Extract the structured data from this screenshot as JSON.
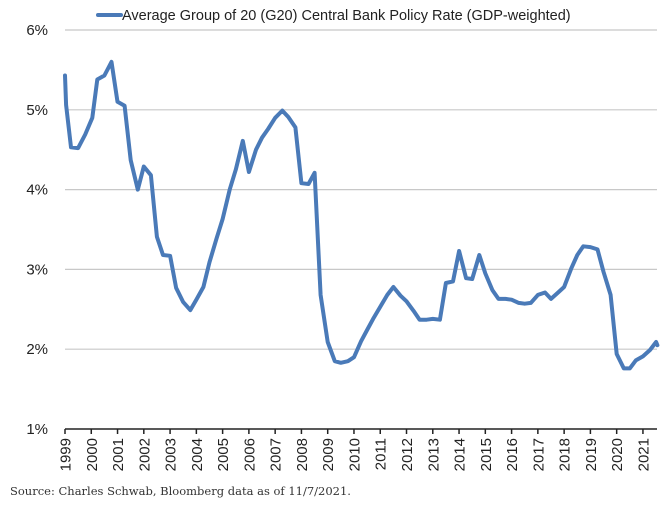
{
  "chart_data": {
    "type": "line",
    "title": "",
    "xlabel": "",
    "ylabel": "",
    "ylim": [
      1,
      6
    ],
    "xlim": [
      1999,
      2021.55
    ],
    "grid": true,
    "legend_position": "top-center",
    "y_ticks": [
      {
        "value": 6,
        "label": "6%"
      },
      {
        "value": 5,
        "label": "5%"
      },
      {
        "value": 4,
        "label": "4%"
      },
      {
        "value": 3,
        "label": "3%"
      },
      {
        "value": 2,
        "label": "2%"
      },
      {
        "value": 1,
        "label": "1%"
      }
    ],
    "x_ticks": [
      "1999",
      "2000",
      "2001",
      "2002",
      "2003",
      "2004",
      "2005",
      "2006",
      "2007",
      "2008",
      "2009",
      "2010",
      "2011",
      "2012",
      "2013",
      "2014",
      "2015",
      "2016",
      "2017",
      "2018",
      "2019",
      "2020",
      "2021"
    ],
    "series": [
      {
        "name": "Average Group of 20 (G20) Central Bank Policy Rate (GDP-weighted)",
        "color": "#4a7ab8",
        "x": [
          1999.0,
          1999.04,
          1999.23,
          1999.5,
          1999.77,
          2000.04,
          2000.23,
          2000.5,
          2000.77,
          2001.0,
          2001.27,
          2001.5,
          2001.77,
          2002.0,
          2002.27,
          2002.5,
          2002.73,
          2003.0,
          2003.23,
          2003.5,
          2003.77,
          2004.0,
          2004.27,
          2004.5,
          2004.77,
          2005.0,
          2005.27,
          2005.5,
          2005.77,
          2006.0,
          2006.27,
          2006.5,
          2006.73,
          2007.0,
          2007.27,
          2007.5,
          2007.77,
          2008.0,
          2008.27,
          2008.5,
          2008.73,
          2009.0,
          2009.27,
          2009.5,
          2009.77,
          2010.0,
          2010.27,
          2010.5,
          2010.73,
          2011.0,
          2011.27,
          2011.5,
          2011.77,
          2012.0,
          2012.27,
          2012.5,
          2012.77,
          2013.0,
          2013.27,
          2013.5,
          2013.77,
          2014.0,
          2014.27,
          2014.5,
          2014.77,
          2015.0,
          2015.27,
          2015.5,
          2015.77,
          2016.0,
          2016.27,
          2016.5,
          2016.73,
          2017.0,
          2017.27,
          2017.5,
          2017.77,
          2018.0,
          2018.27,
          2018.5,
          2018.73,
          2019.0,
          2019.27,
          2019.5,
          2019.77,
          2020.0,
          2020.27,
          2020.5,
          2020.73,
          2021.0,
          2021.27,
          2021.5,
          2021.55
        ],
        "values": [
          5.43,
          5.06,
          4.53,
          4.52,
          4.69,
          4.9,
          5.38,
          5.43,
          5.6,
          5.1,
          5.05,
          4.37,
          4.0,
          4.29,
          4.18,
          3.41,
          3.18,
          3.17,
          2.77,
          2.59,
          2.49,
          2.62,
          2.78,
          3.09,
          3.39,
          3.63,
          4.0,
          4.25,
          4.61,
          4.22,
          4.5,
          4.65,
          4.76,
          4.9,
          4.99,
          4.91,
          4.78,
          4.08,
          4.07,
          4.21,
          2.68,
          2.09,
          1.85,
          1.83,
          1.85,
          1.9,
          2.1,
          2.24,
          2.38,
          2.53,
          2.68,
          2.78,
          2.67,
          2.6,
          2.48,
          2.37,
          2.37,
          2.38,
          2.37,
          2.83,
          2.85,
          3.23,
          2.89,
          2.88,
          3.18,
          2.95,
          2.74,
          2.63,
          2.63,
          2.62,
          2.58,
          2.57,
          2.58,
          2.68,
          2.71,
          2.63,
          2.71,
          2.78,
          3.01,
          3.18,
          3.29,
          3.28,
          3.25,
          2.97,
          2.68,
          1.94,
          1.76,
          1.76,
          1.86,
          1.91,
          1.99,
          2.09,
          2.05
        ]
      }
    ]
  },
  "legend": {
    "label": "Average Group of 20 (G20) Central Bank Policy Rate (GDP-weighted)"
  },
  "source_note": "Source: Charles Schwab, Bloomberg data as of 11/7/2021."
}
